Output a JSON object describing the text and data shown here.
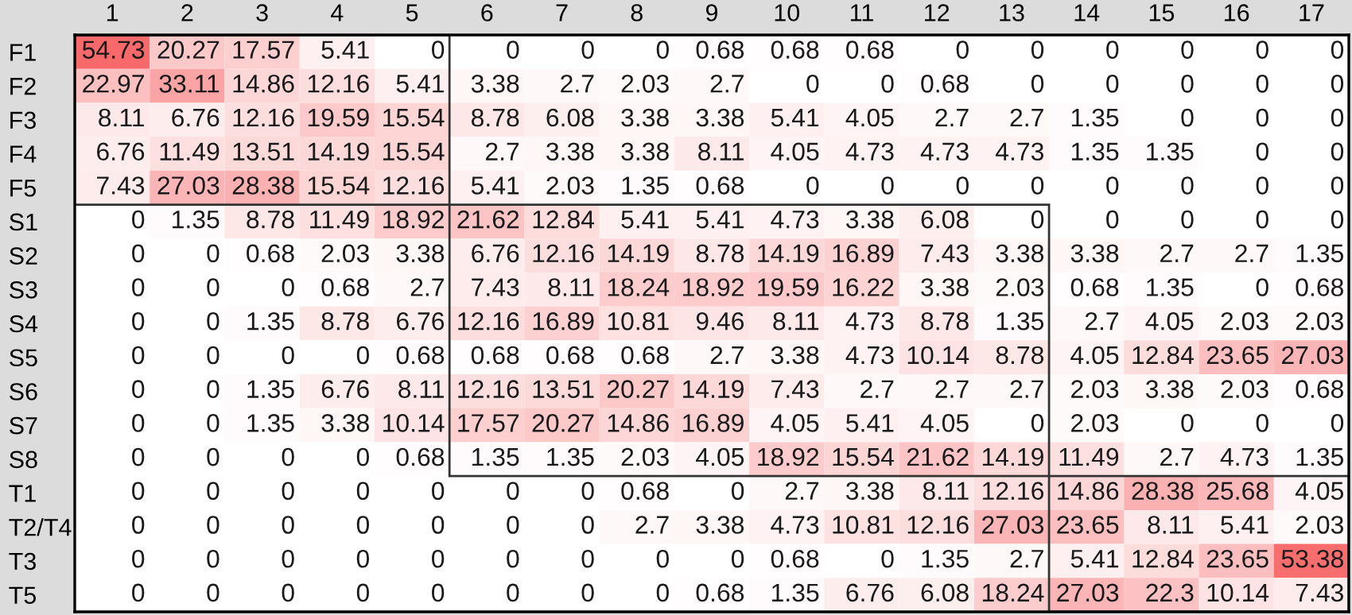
{
  "chart_data": {
    "type": "heatmap",
    "categories": [
      "1",
      "2",
      "3",
      "4",
      "5",
      "6",
      "7",
      "8",
      "9",
      "10",
      "11",
      "12",
      "13",
      "14",
      "15",
      "16",
      "17"
    ],
    "y_categories": [
      "F1",
      "F2",
      "F3",
      "F4",
      "F5",
      "S1",
      "S2",
      "S3",
      "S4",
      "S5",
      "S6",
      "S7",
      "S8",
      "T1",
      "T2/T4",
      "T3",
      "T5"
    ],
    "cells": [
      [
        54.73,
        20.27,
        17.57,
        5.41,
        0,
        0,
        0,
        0,
        0.68,
        0.68,
        0.68,
        0,
        0,
        0,
        0,
        0,
        0
      ],
      [
        22.97,
        33.11,
        14.86,
        12.16,
        5.41,
        3.38,
        2.7,
        2.03,
        2.7,
        0,
        0,
        0.68,
        0,
        0,
        0,
        0,
        0
      ],
      [
        8.11,
        6.76,
        12.16,
        19.59,
        15.54,
        8.78,
        6.08,
        3.38,
        3.38,
        5.41,
        4.05,
        2.7,
        2.7,
        1.35,
        0,
        0,
        0
      ],
      [
        6.76,
        11.49,
        13.51,
        14.19,
        15.54,
        2.7,
        3.38,
        3.38,
        8.11,
        4.05,
        4.73,
        4.73,
        4.73,
        1.35,
        1.35,
        0,
        0
      ],
      [
        7.43,
        27.03,
        28.38,
        15.54,
        12.16,
        5.41,
        2.03,
        1.35,
        0.68,
        0,
        0,
        0,
        0,
        0,
        0,
        0,
        0
      ],
      [
        0,
        1.35,
        8.78,
        11.49,
        18.92,
        21.62,
        12.84,
        5.41,
        5.41,
        4.73,
        3.38,
        6.08,
        0,
        0,
        0,
        0,
        0
      ],
      [
        0,
        0,
        0.68,
        2.03,
        3.38,
        6.76,
        12.16,
        14.19,
        8.78,
        14.19,
        16.89,
        7.43,
        3.38,
        3.38,
        2.7,
        2.7,
        1.35
      ],
      [
        0,
        0,
        0,
        0.68,
        2.7,
        7.43,
        8.11,
        18.24,
        18.92,
        19.59,
        16.22,
        3.38,
        2.03,
        0.68,
        1.35,
        0,
        0.68
      ],
      [
        0,
        0,
        1.35,
        8.78,
        6.76,
        12.16,
        16.89,
        10.81,
        9.46,
        8.11,
        4.73,
        8.78,
        1.35,
        2.7,
        4.05,
        2.03,
        2.03
      ],
      [
        0,
        0,
        0,
        0,
        0.68,
        0.68,
        0.68,
        0.68,
        2.7,
        3.38,
        4.73,
        10.14,
        8.78,
        4.05,
        12.84,
        23.65,
        27.03
      ],
      [
        0,
        0,
        1.35,
        6.76,
        8.11,
        12.16,
        13.51,
        20.27,
        14.19,
        7.43,
        2.7,
        2.7,
        2.7,
        2.03,
        3.38,
        2.03,
        0.68
      ],
      [
        0,
        0,
        1.35,
        3.38,
        10.14,
        17.57,
        20.27,
        14.86,
        16.89,
        4.05,
        5.41,
        4.05,
        0,
        2.03,
        0,
        0,
        0
      ],
      [
        0,
        0,
        0,
        0,
        0.68,
        1.35,
        1.35,
        2.03,
        4.05,
        18.92,
        15.54,
        21.62,
        14.19,
        11.49,
        2.7,
        4.73,
        1.35
      ],
      [
        0,
        0,
        0,
        0,
        0,
        0,
        0,
        0.68,
        0,
        2.7,
        3.38,
        8.11,
        12.16,
        14.86,
        28.38,
        25.68,
        4.05
      ],
      [
        0,
        0,
        0,
        0,
        0,
        0,
        0,
        2.7,
        3.38,
        4.73,
        10.81,
        12.16,
        27.03,
        23.65,
        8.11,
        5.41,
        2.03
      ],
      [
        0,
        0,
        0,
        0,
        0,
        0,
        0,
        0,
        0,
        0.68,
        0,
        1.35,
        2.7,
        5.41,
        12.84,
        23.65,
        53.38
      ],
      [
        0,
        0,
        0,
        0,
        0,
        0,
        0,
        0,
        0.68,
        1.35,
        6.76,
        6.08,
        18.24,
        27.03,
        22.3,
        10.14,
        7.43
      ]
    ],
    "data_labels": true
  }
}
